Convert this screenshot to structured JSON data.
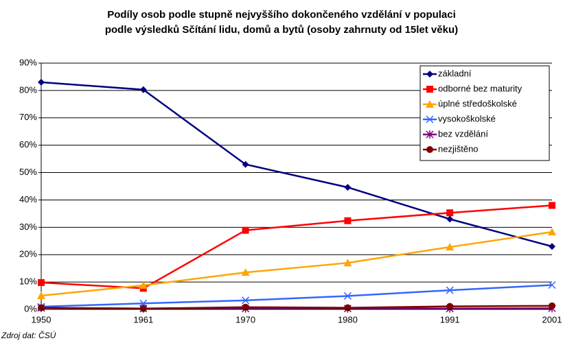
{
  "chart_data": {
    "type": "line",
    "title": [
      "Podíly osob podle stupně nejvyššího dokončeného vzdělání v populaci",
      "podle výsledků Sčítání lidu, domů a bytů (osoby zahrnuty od 15let věku)"
    ],
    "source": "Zdroj dat: ČSÚ",
    "categories": [
      "1950",
      "1961",
      "1970",
      "1980",
      "1991",
      "2001"
    ],
    "ylim": [
      0,
      90
    ],
    "yticks": [
      {
        "value": 0,
        "label": "0%"
      },
      {
        "value": 10,
        "label": "10%"
      },
      {
        "value": 20,
        "label": "20%"
      },
      {
        "value": 30,
        "label": "30%"
      },
      {
        "value": 40,
        "label": "40%"
      },
      {
        "value": 50,
        "label": "50%"
      },
      {
        "value": 60,
        "label": "60%"
      },
      {
        "value": 70,
        "label": "70%"
      },
      {
        "value": 80,
        "label": "80%"
      },
      {
        "value": 90,
        "label": "90%"
      }
    ],
    "grid": true,
    "legend": "top-right",
    "series": [
      {
        "name": "základní",
        "color": "#000080",
        "marker": "diamond",
        "values": [
          83,
          80.3,
          53,
          44.6,
          33,
          23
        ]
      },
      {
        "name": "odborné bez maturity",
        "color": "#ff0000",
        "marker": "square",
        "values": [
          9.8,
          7.7,
          28.9,
          32.4,
          35.3,
          38
        ]
      },
      {
        "name": "úplné středoškolské",
        "color": "#ffa500",
        "marker": "triangle",
        "values": [
          5,
          8.8,
          13.5,
          17,
          22.8,
          28.3
        ]
      },
      {
        "name": "vysokoškolské",
        "color": "#3366ff",
        "marker": "x",
        "values": [
          1,
          2.2,
          3.3,
          4.9,
          7,
          8.9
        ]
      },
      {
        "name": "bez vzdělání",
        "color": "#800080",
        "marker": "star",
        "values": [
          0.5,
          0.3,
          0.3,
          0.3,
          0.3,
          0.4
        ]
      },
      {
        "name": "nezjištěno",
        "color": "#800000",
        "marker": "circle",
        "values": [
          0.6,
          0.3,
          0.8,
          0.6,
          1.1,
          1.3
        ]
      }
    ]
  }
}
